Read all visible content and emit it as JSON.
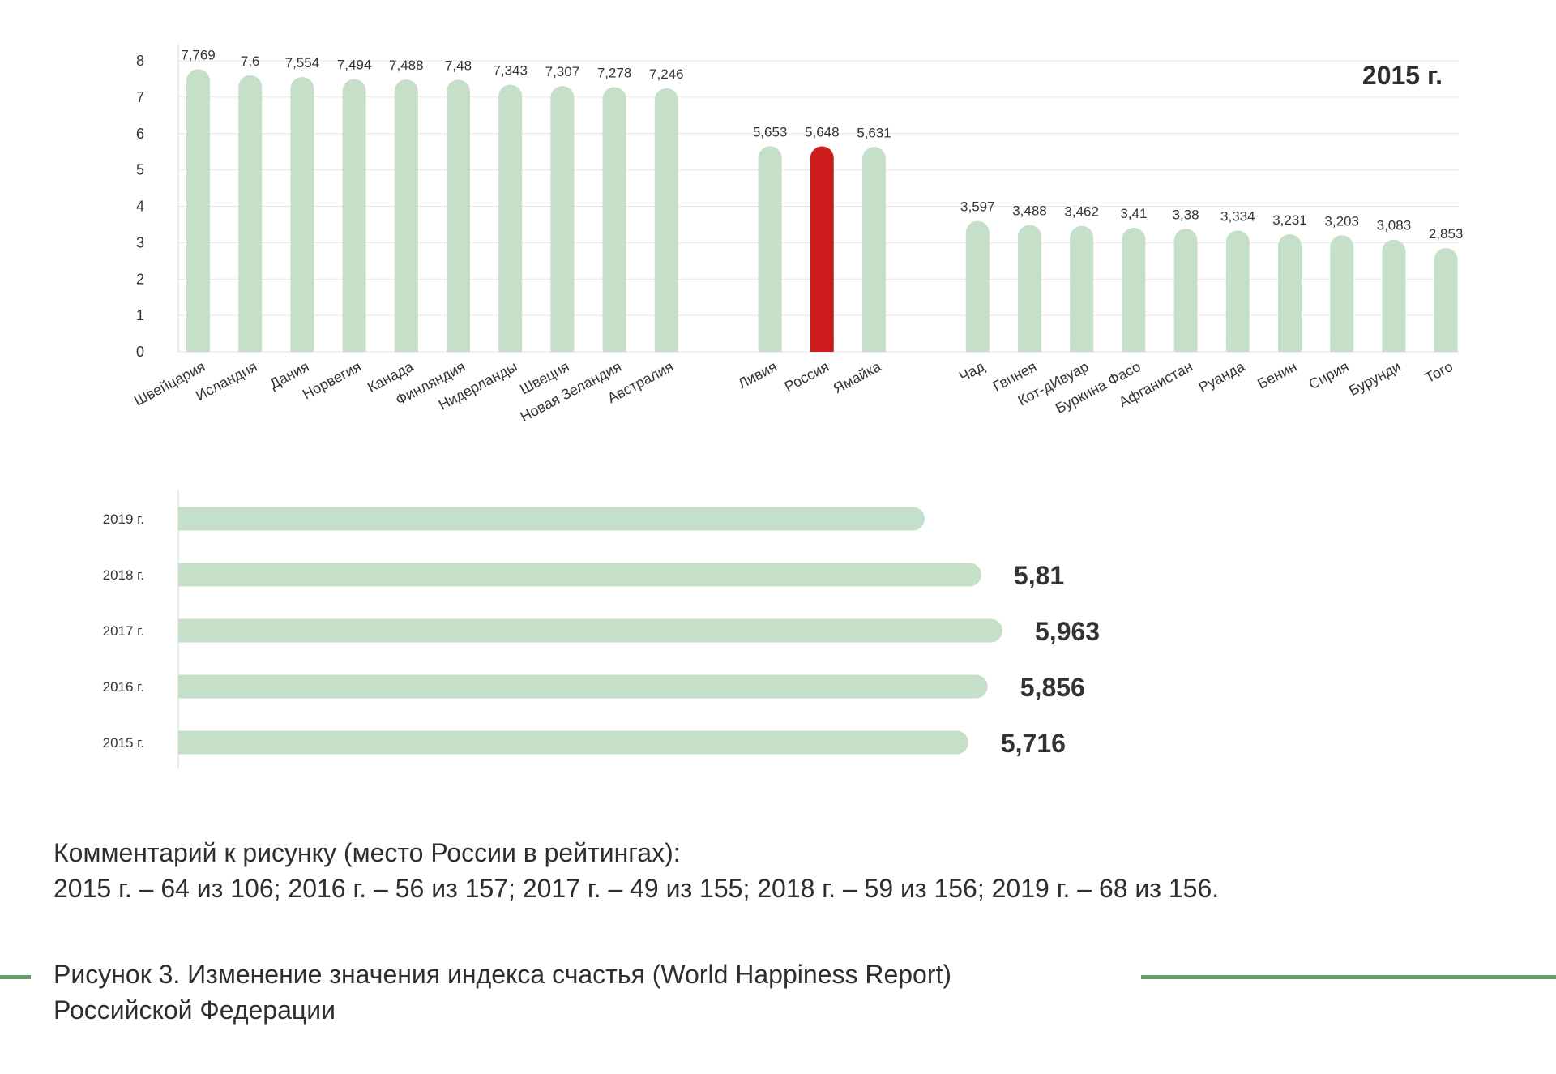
{
  "chart_data": [
    {
      "type": "bar",
      "title": "2015 г.",
      "categories": [
        "Швейцария",
        "Исландия",
        "Дания",
        "Норвегия",
        "Канада",
        "Финляндия",
        "Нидерланды",
        "Швеция",
        "Новая Зеландия",
        "Австралия",
        "Ливия",
        "Россия",
        "Ямайка",
        "Чад",
        "Гвинея",
        "Кот-дИвуар",
        "Буркина Фасо",
        "Афганистан",
        "Руанда",
        "Бенин",
        "Сирия",
        "Бурунди",
        "Того"
      ],
      "values": [
        7.769,
        7.6,
        7.554,
        7.494,
        7.488,
        7.48,
        7.343,
        7.307,
        7.278,
        7.246,
        5.653,
        5.648,
        5.631,
        3.597,
        3.488,
        3.462,
        3.41,
        3.38,
        3.334,
        3.231,
        3.203,
        3.083,
        2.853
      ],
      "value_labels": [
        "7,769",
        "7,6",
        "7,554",
        "7,494",
        "7,488",
        "7,48",
        "7,343",
        "7,307",
        "7,278",
        "7,246",
        "5,653",
        "5,648",
        "5,631",
        "3,597",
        "3,488",
        "3,462",
        "3,41",
        "3,38",
        "3,334",
        "3,231",
        "3,203",
        "3,083",
        "2,853"
      ],
      "groups": [
        10,
        3,
        10
      ],
      "highlight": "Россия",
      "ylim": [
        0,
        8
      ],
      "yticks": [
        "0",
        "1",
        "2",
        "3",
        "4",
        "5",
        "6",
        "7",
        "8"
      ],
      "grid": true,
      "colors": {
        "bar": "#c5dfc8",
        "highlight": "#cc1c1c"
      }
    },
    {
      "type": "bar",
      "orientation": "horizontal",
      "categories": [
        "2019 г.",
        "2018 г.",
        "2017 г.",
        "2016 г.",
        "2015 г."
      ],
      "values": [
        5.4,
        5.81,
        5.963,
        5.856,
        5.716
      ],
      "value_labels": [
        "",
        "5,81",
        "5,963",
        "5,856",
        "5,716"
      ],
      "colors": {
        "bar": "#c5dfc8"
      }
    }
  ],
  "comment": {
    "line1": "Комментарий к рисунку (место России в рейтингах):",
    "line2": "2015 г. – 64 из 106; 2016 г. – 56 из 157; 2017 г. – 49 из 155; 2018 г. – 59 из 156; 2019 г. – 68 из 156."
  },
  "caption": {
    "line1": "Рисунок 3. Изменение значения индекса счастья (World Happiness Report)",
    "line2": "Российской Федерации"
  },
  "colors": {
    "rule": "#6a9c69"
  }
}
